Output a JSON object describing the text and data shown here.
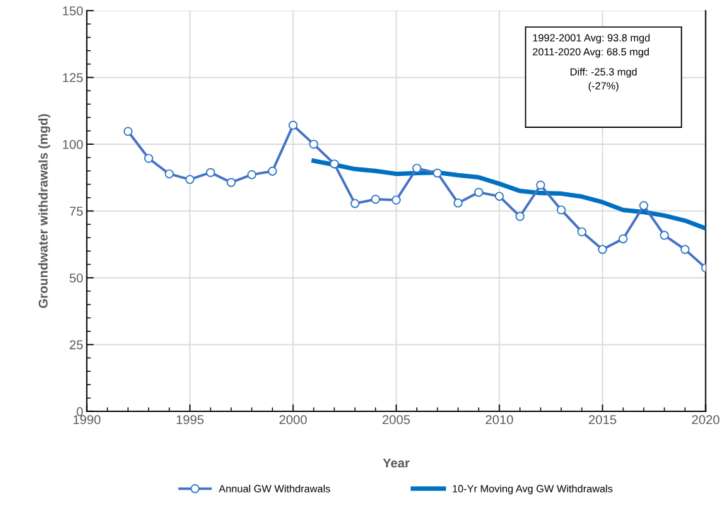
{
  "chart_data": {
    "type": "line",
    "xlabel": "Year",
    "ylabel": "Groundwater withdrawals (mgd)",
    "series": [
      {
        "name": "Annual GW Withdrawals",
        "color": "#4472c4",
        "marker": "circle",
        "x": [
          1992,
          1993,
          1994,
          1995,
          1996,
          1997,
          1998,
          1999,
          2000,
          2001,
          2002,
          2003,
          2004,
          2005,
          2006,
          2007,
          2008,
          2009,
          2010,
          2011,
          2012,
          2013,
          2014,
          2015,
          2016,
          2017,
          2018,
          2019,
          2020
        ],
        "values": [
          104.8,
          94.7,
          88.9,
          86.8,
          89.4,
          85.7,
          88.6,
          89.9,
          107.1,
          100,
          92.6,
          77.8,
          79.4,
          79.1,
          91,
          89.2,
          78,
          82,
          80.5,
          73,
          84.7,
          75.4,
          67.2,
          60.6,
          64.6,
          77,
          65.9,
          60.6,
          53.7
        ]
      },
      {
        "name": "10-Yr Moving Avg GW Withdrawals",
        "color": "#0070c0",
        "marker": "none",
        "x": [
          2001,
          2002,
          2003,
          2004,
          2005,
          2006,
          2007,
          2008,
          2009,
          2010,
          2011,
          2012,
          2013,
          2014,
          2015,
          2016,
          2017,
          2018,
          2019,
          2020
        ],
        "values": [
          93.8,
          92.3,
          90.7,
          90,
          88.9,
          89.2,
          89.4,
          88.4,
          87.6,
          85.2,
          82.5,
          81.7,
          81.5,
          80.4,
          78.3,
          75.4,
          74.6,
          73.3,
          71.4,
          68.5
        ]
      }
    ],
    "xlim": [
      1990,
      2020
    ],
    "xticks": [
      1990,
      1995,
      2000,
      2005,
      2010,
      2015,
      2020
    ],
    "ylim": [
      0,
      150
    ],
    "yticks": [
      0,
      25,
      50,
      75,
      100,
      125,
      150
    ],
    "grid": true,
    "legend": "bottom",
    "line_style": "solid",
    "annotations": [
      "1992-2001 Avg: 93.8 mgd",
      "2011-2020 Avg: 68.5 mgd",
      "Diff: -25.3 mgd",
      "(-27%)"
    ]
  }
}
